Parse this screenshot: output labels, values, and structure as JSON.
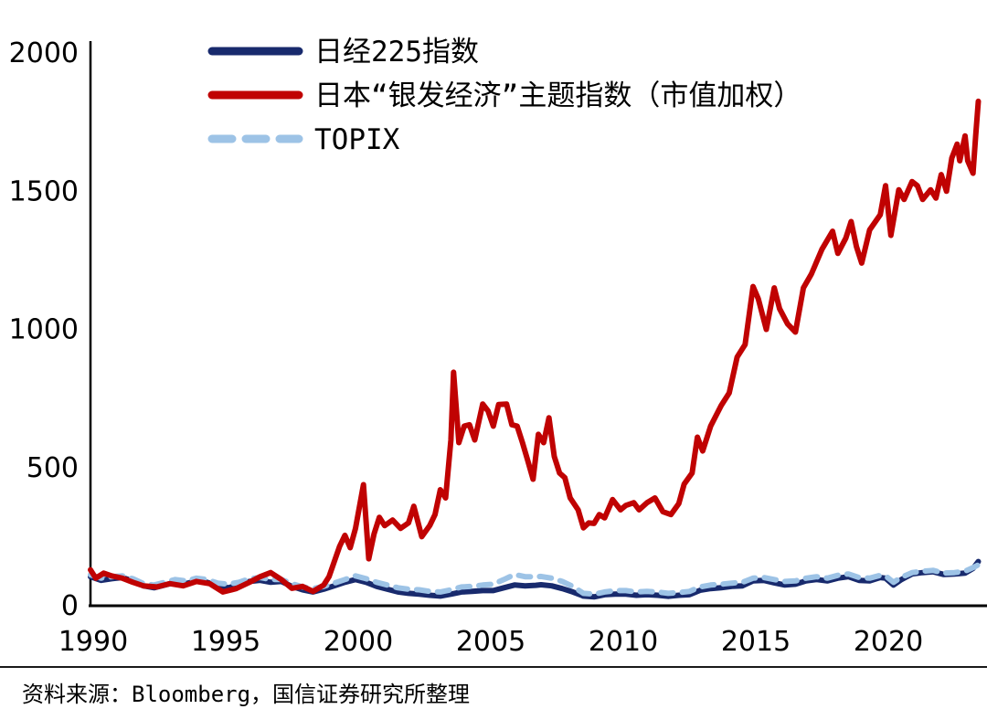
{
  "source_note": "资料来源：Bloomberg，国信证券研究所整理",
  "chart_data": {
    "type": "line",
    "title": "",
    "xlabel": "",
    "ylabel": "",
    "xlim": [
      1990,
      2023.7
    ],
    "ylim": [
      0,
      2000
    ],
    "x_ticks": [
      "1990",
      "1995",
      "2000",
      "2005",
      "2010",
      "2015",
      "2020"
    ],
    "x_tick_years": [
      1990,
      1995,
      2000,
      2005,
      2010,
      2015,
      2020
    ],
    "y_ticks": [
      "0",
      "500",
      "1000",
      "1500",
      "2000"
    ],
    "y_tick_values": [
      0,
      500,
      1000,
      1500,
      2000
    ],
    "grid": false,
    "legend_position": "top-left-inside",
    "series": [
      {
        "name": "日经225指数",
        "color": "#182a6d",
        "style": "solid",
        "points": [
          [
            1990.0,
            105
          ],
          [
            1990.4,
            92
          ],
          [
            1990.8,
            98
          ],
          [
            1991.2,
            102
          ],
          [
            1991.6,
            90
          ],
          [
            1992.0,
            72
          ],
          [
            1992.4,
            65
          ],
          [
            1992.8,
            75
          ],
          [
            1993.2,
            85
          ],
          [
            1993.6,
            80
          ],
          [
            1994.0,
            90
          ],
          [
            1994.4,
            85
          ],
          [
            1994.8,
            72
          ],
          [
            1995.2,
            65
          ],
          [
            1995.6,
            75
          ],
          [
            1996.0,
            88
          ],
          [
            1996.4,
            92
          ],
          [
            1996.8,
            85
          ],
          [
            1997.2,
            88
          ],
          [
            1997.6,
            70
          ],
          [
            1998.0,
            58
          ],
          [
            1998.4,
            50
          ],
          [
            1998.8,
            60
          ],
          [
            1999.2,
            72
          ],
          [
            1999.6,
            85
          ],
          [
            2000.0,
            95
          ],
          [
            2000.4,
            85
          ],
          [
            2000.8,
            70
          ],
          [
            2001.2,
            60
          ],
          [
            2001.6,
            50
          ],
          [
            2002.0,
            45
          ],
          [
            2002.4,
            42
          ],
          [
            2002.8,
            38
          ],
          [
            2003.2,
            35
          ],
          [
            2003.6,
            42
          ],
          [
            2004.0,
            50
          ],
          [
            2004.4,
            52
          ],
          [
            2004.8,
            55
          ],
          [
            2005.2,
            55
          ],
          [
            2005.6,
            65
          ],
          [
            2006.0,
            75
          ],
          [
            2006.4,
            72
          ],
          [
            2006.8,
            74
          ],
          [
            2007.0,
            76
          ],
          [
            2007.4,
            72
          ],
          [
            2007.8,
            62
          ],
          [
            2008.2,
            50
          ],
          [
            2008.6,
            35
          ],
          [
            2009.0,
            32
          ],
          [
            2009.4,
            40
          ],
          [
            2009.8,
            42
          ],
          [
            2010.2,
            42
          ],
          [
            2010.6,
            38
          ],
          [
            2011.0,
            40
          ],
          [
            2011.4,
            38
          ],
          [
            2011.8,
            34
          ],
          [
            2012.2,
            38
          ],
          [
            2012.6,
            40
          ],
          [
            2013.0,
            56
          ],
          [
            2013.4,
            62
          ],
          [
            2013.8,
            65
          ],
          [
            2014.2,
            70
          ],
          [
            2014.6,
            72
          ],
          [
            2015.0,
            90
          ],
          [
            2015.4,
            92
          ],
          [
            2015.8,
            83
          ],
          [
            2016.2,
            75
          ],
          [
            2016.6,
            78
          ],
          [
            2017.0,
            90
          ],
          [
            2017.4,
            95
          ],
          [
            2017.8,
            90
          ],
          [
            2018.2,
            100
          ],
          [
            2018.6,
            105
          ],
          [
            2019.0,
            92
          ],
          [
            2019.4,
            90
          ],
          [
            2019.8,
            102
          ],
          [
            2020.0,
            100
          ],
          [
            2020.3,
            75
          ],
          [
            2020.6,
            95
          ],
          [
            2021.0,
            115
          ],
          [
            2021.4,
            120
          ],
          [
            2021.8,
            123
          ],
          [
            2022.2,
            113
          ],
          [
            2022.6,
            115
          ],
          [
            2023.0,
            118
          ],
          [
            2023.3,
            135
          ],
          [
            2023.5,
            160
          ]
        ]
      },
      {
        "name": "日本“银发经济”主题指数（市值加权）",
        "color": "#c00202",
        "style": "solid",
        "points": [
          [
            1990.0,
            130
          ],
          [
            1990.2,
            100
          ],
          [
            1990.5,
            118
          ],
          [
            1990.8,
            108
          ],
          [
            1991.2,
            100
          ],
          [
            1991.6,
            85
          ],
          [
            1992.0,
            72
          ],
          [
            1992.5,
            68
          ],
          [
            1993.0,
            80
          ],
          [
            1993.5,
            72
          ],
          [
            1994.0,
            88
          ],
          [
            1994.5,
            80
          ],
          [
            1995.0,
            50
          ],
          [
            1995.5,
            62
          ],
          [
            1996.0,
            85
          ],
          [
            1996.4,
            105
          ],
          [
            1996.8,
            120
          ],
          [
            1997.2,
            95
          ],
          [
            1997.6,
            63
          ],
          [
            1998.0,
            70
          ],
          [
            1998.4,
            52
          ],
          [
            1998.8,
            75
          ],
          [
            1999.0,
            105
          ],
          [
            1999.2,
            160
          ],
          [
            1999.4,
            215
          ],
          [
            1999.6,
            255
          ],
          [
            1999.8,
            210
          ],
          [
            2000.0,
            280
          ],
          [
            2000.3,
            438
          ],
          [
            2000.5,
            170
          ],
          [
            2000.7,
            260
          ],
          [
            2000.9,
            320
          ],
          [
            2001.1,
            290
          ],
          [
            2001.4,
            310
          ],
          [
            2001.7,
            280
          ],
          [
            2002.0,
            300
          ],
          [
            2002.2,
            360
          ],
          [
            2002.5,
            250
          ],
          [
            2002.8,
            290
          ],
          [
            2003.0,
            330
          ],
          [
            2003.2,
            420
          ],
          [
            2003.4,
            390
          ],
          [
            2003.6,
            600
          ],
          [
            2003.7,
            845
          ],
          [
            2003.9,
            590
          ],
          [
            2004.1,
            650
          ],
          [
            2004.3,
            655
          ],
          [
            2004.5,
            600
          ],
          [
            2004.8,
            730
          ],
          [
            2005.0,
            705
          ],
          [
            2005.2,
            650
          ],
          [
            2005.4,
            728
          ],
          [
            2005.7,
            730
          ],
          [
            2005.9,
            655
          ],
          [
            2006.1,
            650
          ],
          [
            2006.3,
            590
          ],
          [
            2006.5,
            525
          ],
          [
            2006.7,
            458
          ],
          [
            2006.9,
            620
          ],
          [
            2007.1,
            590
          ],
          [
            2007.3,
            680
          ],
          [
            2007.5,
            540
          ],
          [
            2007.7,
            480
          ],
          [
            2007.9,
            463
          ],
          [
            2008.1,
            390
          ],
          [
            2008.4,
            347
          ],
          [
            2008.6,
            282
          ],
          [
            2008.8,
            300
          ],
          [
            2009.0,
            298
          ],
          [
            2009.2,
            330
          ],
          [
            2009.4,
            318
          ],
          [
            2009.7,
            384
          ],
          [
            2010.0,
            347
          ],
          [
            2010.2,
            363
          ],
          [
            2010.5,
            373
          ],
          [
            2010.7,
            347
          ],
          [
            2011.0,
            373
          ],
          [
            2011.3,
            390
          ],
          [
            2011.6,
            340
          ],
          [
            2011.9,
            330
          ],
          [
            2012.2,
            370
          ],
          [
            2012.4,
            440
          ],
          [
            2012.7,
            480
          ],
          [
            2012.9,
            610
          ],
          [
            2013.1,
            560
          ],
          [
            2013.4,
            650
          ],
          [
            2013.8,
            725
          ],
          [
            2014.1,
            770
          ],
          [
            2014.4,
            900
          ],
          [
            2014.7,
            945
          ],
          [
            2015.0,
            1155
          ],
          [
            2015.2,
            1110
          ],
          [
            2015.5,
            1000
          ],
          [
            2015.8,
            1150
          ],
          [
            2016.0,
            1075
          ],
          [
            2016.3,
            1020
          ],
          [
            2016.6,
            990
          ],
          [
            2016.9,
            1150
          ],
          [
            2017.2,
            1200
          ],
          [
            2017.6,
            1290
          ],
          [
            2018.0,
            1355
          ],
          [
            2018.2,
            1275
          ],
          [
            2018.5,
            1330
          ],
          [
            2018.7,
            1390
          ],
          [
            2018.9,
            1300
          ],
          [
            2019.1,
            1240
          ],
          [
            2019.4,
            1360
          ],
          [
            2019.8,
            1415
          ],
          [
            2020.0,
            1520
          ],
          [
            2020.2,
            1340
          ],
          [
            2020.5,
            1505
          ],
          [
            2020.7,
            1470
          ],
          [
            2021.0,
            1535
          ],
          [
            2021.2,
            1520
          ],
          [
            2021.4,
            1470
          ],
          [
            2021.7,
            1505
          ],
          [
            2021.9,
            1475
          ],
          [
            2022.1,
            1560
          ],
          [
            2022.3,
            1500
          ],
          [
            2022.5,
            1620
          ],
          [
            2022.7,
            1670
          ],
          [
            2022.8,
            1610
          ],
          [
            2023.0,
            1700
          ],
          [
            2023.1,
            1610
          ],
          [
            2023.3,
            1565
          ],
          [
            2023.4,
            1700
          ],
          [
            2023.5,
            1825
          ]
        ]
      },
      {
        "name": "TOPIX",
        "color": "#9dc3e6",
        "style": "dashed",
        "points": [
          [
            1990.0,
            112
          ],
          [
            1990.4,
            100
          ],
          [
            1990.8,
            105
          ],
          [
            1991.2,
            108
          ],
          [
            1991.6,
            98
          ],
          [
            1992.0,
            80
          ],
          [
            1992.4,
            75
          ],
          [
            1992.8,
            85
          ],
          [
            1993.2,
            95
          ],
          [
            1993.6,
            90
          ],
          [
            1994.0,
            100
          ],
          [
            1994.4,
            95
          ],
          [
            1994.8,
            82
          ],
          [
            1995.2,
            78
          ],
          [
            1995.6,
            85
          ],
          [
            1996.0,
            98
          ],
          [
            1996.4,
            102
          ],
          [
            1996.8,
            95
          ],
          [
            1997.2,
            95
          ],
          [
            1997.6,
            80
          ],
          [
            1998.0,
            68
          ],
          [
            1998.4,
            62
          ],
          [
            1998.8,
            70
          ],
          [
            1999.2,
            82
          ],
          [
            1999.6,
            95
          ],
          [
            2000.0,
            108
          ],
          [
            2000.4,
            98
          ],
          [
            2000.8,
            85
          ],
          [
            2001.2,
            75
          ],
          [
            2001.6,
            65
          ],
          [
            2002.0,
            60
          ],
          [
            2002.4,
            58
          ],
          [
            2002.8,
            52
          ],
          [
            2003.2,
            50
          ],
          [
            2003.6,
            58
          ],
          [
            2004.0,
            68
          ],
          [
            2004.4,
            70
          ],
          [
            2004.8,
            75
          ],
          [
            2005.2,
            78
          ],
          [
            2005.6,
            95
          ],
          [
            2006.0,
            113
          ],
          [
            2006.4,
            105
          ],
          [
            2006.8,
            105
          ],
          [
            2007.0,
            106
          ],
          [
            2007.4,
            100
          ],
          [
            2007.8,
            88
          ],
          [
            2008.2,
            70
          ],
          [
            2008.6,
            45
          ],
          [
            2009.0,
            42
          ],
          [
            2009.4,
            50
          ],
          [
            2009.8,
            55
          ],
          [
            2010.2,
            55
          ],
          [
            2010.6,
            50
          ],
          [
            2011.0,
            52
          ],
          [
            2011.4,
            50
          ],
          [
            2011.8,
            45
          ],
          [
            2012.2,
            48
          ],
          [
            2012.6,
            52
          ],
          [
            2013.0,
            68
          ],
          [
            2013.4,
            75
          ],
          [
            2013.8,
            78
          ],
          [
            2014.2,
            82
          ],
          [
            2014.6,
            85
          ],
          [
            2015.0,
            100
          ],
          [
            2015.4,
            102
          ],
          [
            2015.8,
            95
          ],
          [
            2016.2,
            88
          ],
          [
            2016.6,
            90
          ],
          [
            2017.0,
            100
          ],
          [
            2017.4,
            105
          ],
          [
            2017.8,
            100
          ],
          [
            2018.2,
            110
          ],
          [
            2018.6,
            115
          ],
          [
            2019.0,
            102
          ],
          [
            2019.4,
            100
          ],
          [
            2019.8,
            110
          ],
          [
            2020.0,
            108
          ],
          [
            2020.3,
            85
          ],
          [
            2020.6,
            103
          ],
          [
            2021.0,
            120
          ],
          [
            2021.4,
            125
          ],
          [
            2021.8,
            128
          ],
          [
            2022.2,
            118
          ],
          [
            2022.6,
            120
          ],
          [
            2023.0,
            125
          ],
          [
            2023.3,
            138
          ],
          [
            2023.5,
            148
          ]
        ]
      }
    ]
  }
}
